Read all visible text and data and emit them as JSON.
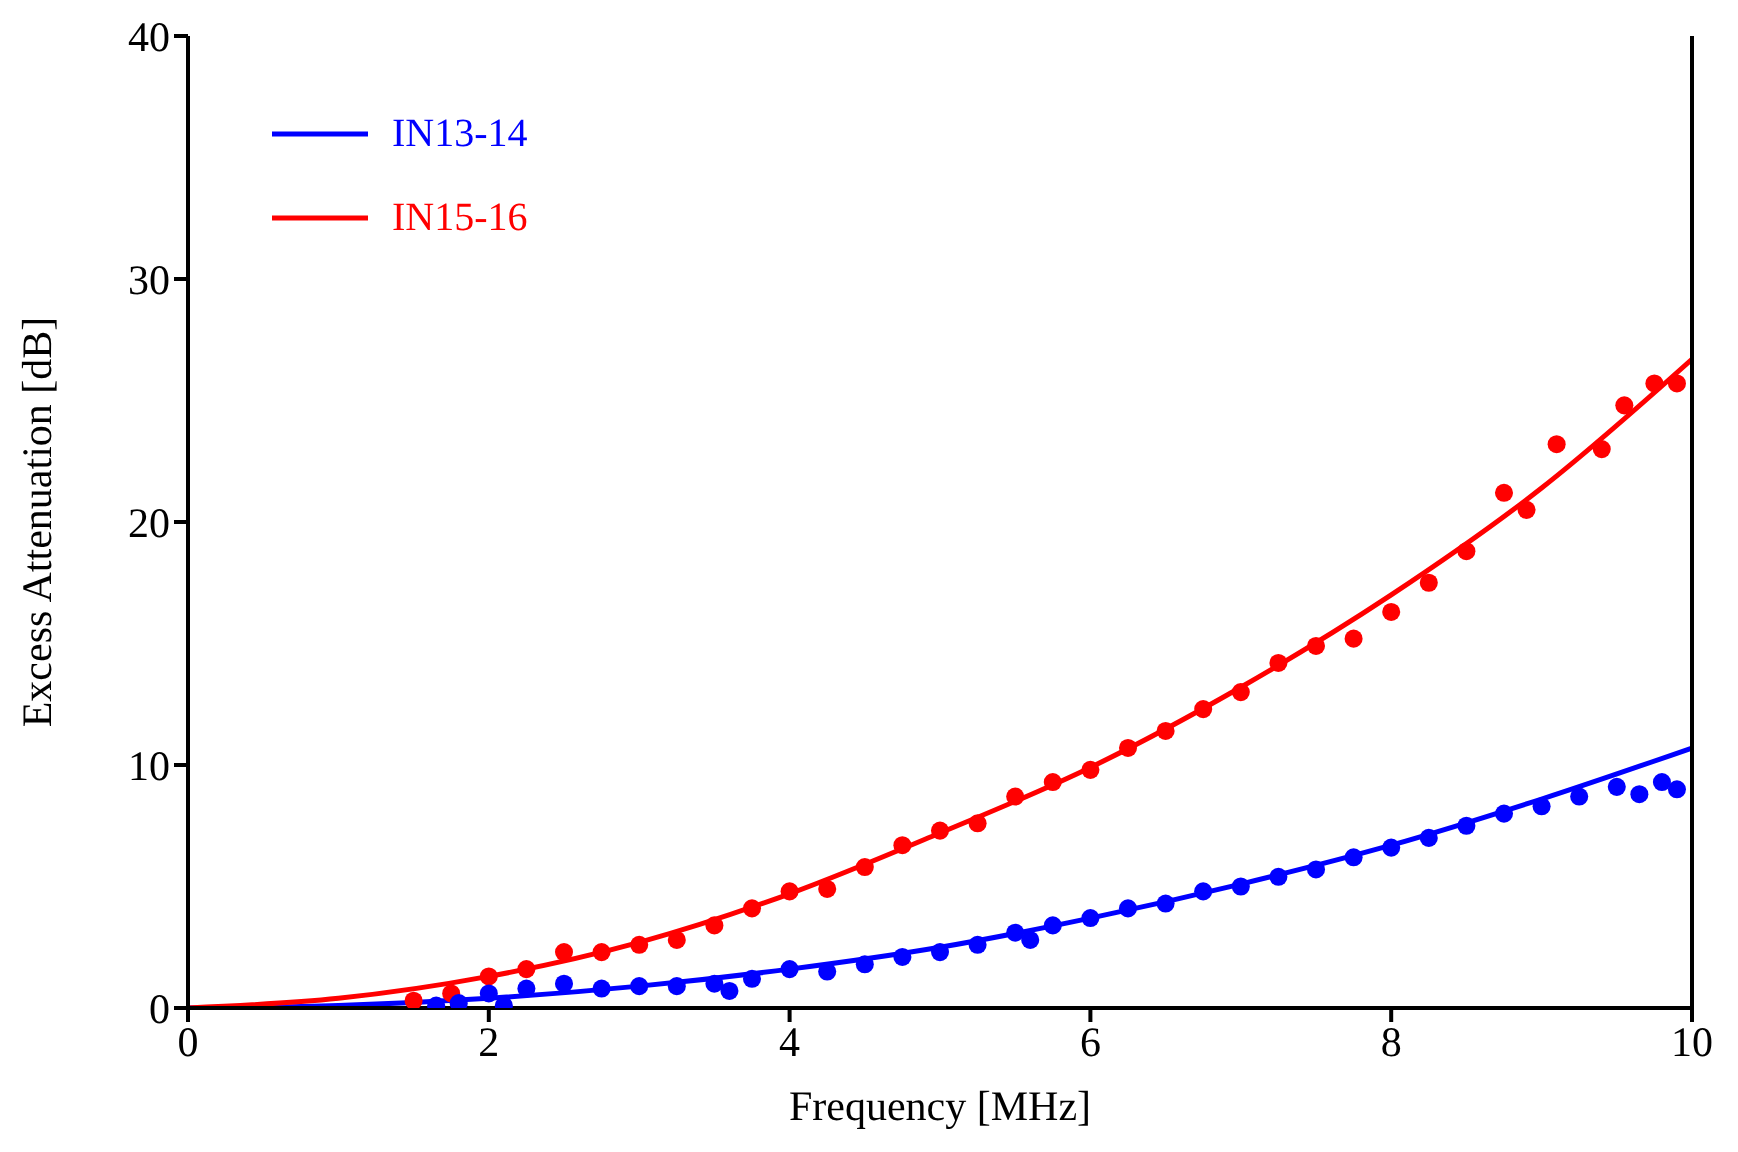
{
  "chart_data": {
    "type": "scatter",
    "xlabel": "Frequency  [MHz]",
    "ylabel": "Excess Attenuation  [dB]",
    "xlim": [
      0,
      10
    ],
    "xticks": [
      0,
      2,
      4,
      6,
      8,
      10
    ],
    "ylim": [
      0,
      40
    ],
    "yticks": [
      0,
      10,
      20,
      30,
      40
    ],
    "grid": false,
    "legend": "top left",
    "marker": "circle",
    "series": [
      {
        "color": "#ff0000",
        "x": [
          1.5,
          1.75,
          2.0,
          2.25,
          2.5,
          2.75,
          3.0,
          3.25,
          3.5,
          3.75,
          4.0,
          4.25,
          4.5,
          4.75,
          5.0,
          5.25,
          5.5,
          5.75,
          6.0,
          6.25,
          6.5,
          6.75,
          7.0,
          7.25,
          7.5,
          7.75,
          8.0,
          8.25,
          8.5,
          8.75,
          8.9,
          9.1,
          9.4,
          9.55,
          9.75,
          9.9
        ],
        "values": [
          0.3,
          0.6,
          1.3,
          1.6,
          2.3,
          2.3,
          2.6,
          2.8,
          3.4,
          4.1,
          4.8,
          4.9,
          5.8,
          6.7,
          7.3,
          7.6,
          8.7,
          9.3,
          9.8,
          10.7,
          11.4,
          12.3,
          13.0,
          14.2,
          14.9,
          15.2,
          16.3,
          17.5,
          18.8,
          21.2,
          20.5,
          23.2,
          23.0,
          24.8,
          25.7,
          25.7
        ]
      },
      {
        "color": "#0000ff",
        "x": [
          1.65,
          1.8,
          2.0,
          2.1,
          2.25,
          2.5,
          2.75,
          3.0,
          3.25,
          3.5,
          3.6,
          3.75,
          4.0,
          4.25,
          4.5,
          4.75,
          5.0,
          5.25,
          5.5,
          5.6,
          5.75,
          6.0,
          6.25,
          6.5,
          6.75,
          7.0,
          7.25,
          7.5,
          7.75,
          8.0,
          8.25,
          8.5,
          8.75,
          9.0,
          9.25,
          9.5,
          9.65,
          9.8,
          9.9
        ],
        "values": [
          0.1,
          0.2,
          0.6,
          0.1,
          0.8,
          1.0,
          0.8,
          0.9,
          0.9,
          1.0,
          0.7,
          1.2,
          1.6,
          1.5,
          1.8,
          2.1,
          2.3,
          2.6,
          3.1,
          2.8,
          3.4,
          3.7,
          4.1,
          4.3,
          4.8,
          5.0,
          5.4,
          5.7,
          6.2,
          6.6,
          7.0,
          7.5,
          8.0,
          8.3,
          8.7,
          9.1,
          8.8,
          9.3,
          9.0
        ]
      },
      {
        "type": "line",
        "name": "IN13-14",
        "color": "#0000ff",
        "marker": "none",
        "x": [
          0,
          1,
          2,
          3,
          4,
          5,
          6,
          7,
          8,
          9,
          10
        ],
        "values": [
          0,
          0.1,
          0.4,
          0.9,
          1.6,
          2.5,
          3.7,
          5.1,
          6.7,
          8.6,
          10.7
        ]
      },
      {
        "type": "line",
        "name": "IN15-16",
        "color": "#ff0000",
        "marker": "none",
        "x": [
          0,
          1,
          2,
          3,
          4,
          5,
          6,
          7,
          8,
          9,
          10
        ],
        "values": [
          0,
          0.4,
          1.3,
          2.7,
          4.7,
          7.2,
          9.9,
          13.2,
          17.0,
          21.4,
          26.7
        ]
      }
    ]
  }
}
